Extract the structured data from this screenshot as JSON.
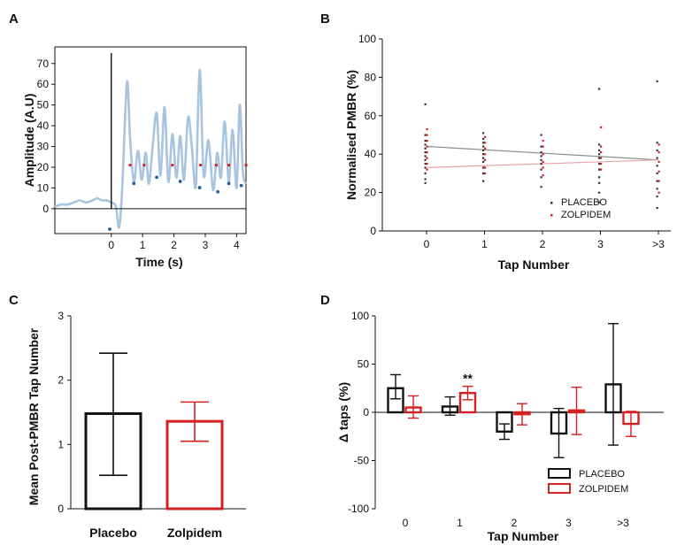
{
  "chart_data": [
    {
      "panel": "A",
      "type": "line",
      "xlabel": "Time (s)",
      "ylabel": "Amplitude (A.U)",
      "xticks": [
        "0",
        "1",
        "2",
        "3",
        "4"
      ],
      "yticks": [
        "0",
        "10",
        "20",
        "30",
        "40",
        "50",
        "60",
        "70"
      ],
      "xlim": [
        -1.8,
        4.3
      ],
      "ylim": [
        -12,
        78
      ],
      "signal_x": [
        -1.8,
        -1.6,
        -1.4,
        -1.2,
        -1.0,
        -0.8,
        -0.6,
        -0.45,
        -0.3,
        -0.15,
        0.0,
        0.15,
        0.25,
        0.35,
        0.5,
        0.6,
        0.72,
        0.85,
        0.97,
        1.1,
        1.2,
        1.32,
        1.45,
        1.57,
        1.7,
        1.82,
        1.95,
        2.08,
        2.2,
        2.32,
        2.45,
        2.57,
        2.7,
        2.82,
        2.95,
        3.1,
        3.25,
        3.38,
        3.5,
        3.62,
        3.75,
        3.87,
        4.0,
        4.1,
        4.2,
        4.3
      ],
      "signal_y": [
        1,
        2,
        2,
        3,
        4,
        3,
        4,
        5,
        4,
        4,
        3,
        1,
        -9,
        10,
        61,
        34,
        13,
        28,
        14,
        27,
        12,
        30,
        46,
        16,
        49,
        13,
        36,
        15,
        35,
        14,
        44,
        30,
        11,
        67,
        16,
        33,
        9,
        27,
        15,
        42,
        13,
        38,
        10,
        50,
        18,
        12
      ],
      "threshold": 21,
      "threshold_x": [
        0.6,
        1.05,
        1.95,
        2.85,
        3.35,
        3.75,
        4.3
      ],
      "troughs": [
        [
          -0.05,
          -9
        ],
        [
          0.72,
          13
        ],
        [
          1.45,
          16
        ],
        [
          2.2,
          14
        ],
        [
          2.82,
          11
        ],
        [
          3.4,
          9
        ],
        [
          3.75,
          13
        ],
        [
          4.15,
          12
        ]
      ]
    },
    {
      "panel": "B",
      "type": "scatter",
      "xlabel": "Tap Number",
      "ylabel": "Normalised PMBR (%)",
      "categories": [
        "0",
        "1",
        "2",
        "3",
        ">3"
      ],
      "yticks": [
        "0",
        "20",
        "40",
        "60",
        "80",
        "100"
      ],
      "ylim": [
        0,
        100
      ],
      "series": [
        {
          "name": "PLACEBO",
          "color": "#333333",
          "points": [
            [
              [
                25,
                27,
                30,
                33,
                35,
                37,
                39,
                41,
                43,
                45,
                47,
                50,
                66
              ]
            ],
            [
              [
                26,
                30,
                33,
                36,
                38,
                40,
                42,
                44,
                46,
                48,
                51
              ]
            ],
            [
              [
                23,
                28,
                32,
                35,
                37,
                39,
                41,
                44,
                50
              ]
            ],
            [
              [
                15,
                20,
                25,
                28,
                32,
                35,
                38,
                40,
                42,
                45,
                74
              ]
            ],
            [
              [
                12,
                18,
                22,
                26,
                30,
                34,
                38,
                42,
                46,
                78
              ]
            ]
          ],
          "trend": [
            44,
            37
          ]
        },
        {
          "name": "ZOLPIDEM",
          "color": "#d42020",
          "points": [
            [
              [
                32,
                35,
                38,
                41,
                44,
                47,
                50,
                53
              ]
            ],
            [
              [
                30,
                33,
                37,
                40,
                43,
                46,
                49
              ]
            ],
            [
              [
                29,
                33,
                36,
                40,
                44,
                47
              ]
            ],
            [
              [
                32,
                35,
                38,
                41,
                44,
                54
              ]
            ],
            [
              [
                20,
                26,
                31,
                36,
                41,
                45
              ]
            ]
          ],
          "trend": [
            33,
            37
          ]
        }
      ]
    },
    {
      "panel": "C",
      "type": "bar",
      "xlabel": "",
      "ylabel": "Mean Post-PMBR Tap Number",
      "categories": [
        "Placebo",
        "Zolpidem"
      ],
      "yticks": [
        "0",
        "1",
        "2",
        "3"
      ],
      "ylim": [
        0,
        3
      ],
      "values": [
        1.48,
        1.36
      ],
      "err_low": [
        0.52,
        1.05
      ],
      "err_high": [
        2.42,
        1.66
      ],
      "colors": [
        "#111111",
        "#d42020"
      ]
    },
    {
      "panel": "D",
      "type": "bar",
      "xlabel": "Tap Number",
      "ylabel": "Δ taps (%)",
      "categories": [
        "0",
        "1",
        "2",
        "3",
        ">3"
      ],
      "yticks": [
        "-100",
        "-50",
        "0",
        "50",
        "100"
      ],
      "ylim": [
        -100,
        100
      ],
      "annotation": {
        "text": "**",
        "category": 1,
        "series": "ZOLPIDEM"
      },
      "series": [
        {
          "name": "PLACEBO",
          "color": "#111111",
          "values": [
            25,
            6,
            -20,
            -22,
            29
          ],
          "err_low": [
            14,
            -3,
            -28,
            -47,
            -34
          ],
          "err_high": [
            39,
            16,
            -12,
            4,
            92
          ]
        },
        {
          "name": "ZOLPIDEM",
          "color": "#d42020",
          "values": [
            5,
            20,
            -2,
            2,
            -12
          ],
          "err_low": [
            -6,
            13,
            -13,
            -23,
            -25
          ],
          "err_high": [
            17,
            27,
            9,
            26,
            1
          ]
        }
      ]
    }
  ]
}
